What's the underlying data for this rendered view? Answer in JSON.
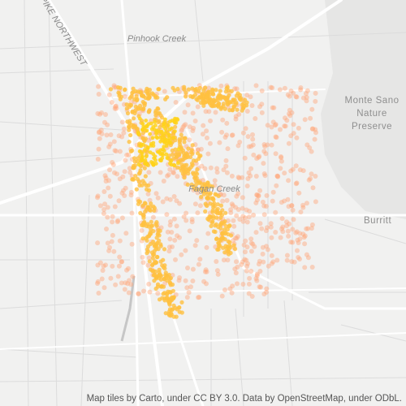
{
  "map": {
    "labels": [
      "Pinhook Creek",
      "PIKE NORTHWEST",
      "Monte Sano",
      "Nature",
      "Preserve",
      "Fagan Creek",
      "Burritt"
    ],
    "attribution": "Map tiles by Carto, under CC BY 3.0. Data by OpenStreetMap, under ODbL."
  }
}
